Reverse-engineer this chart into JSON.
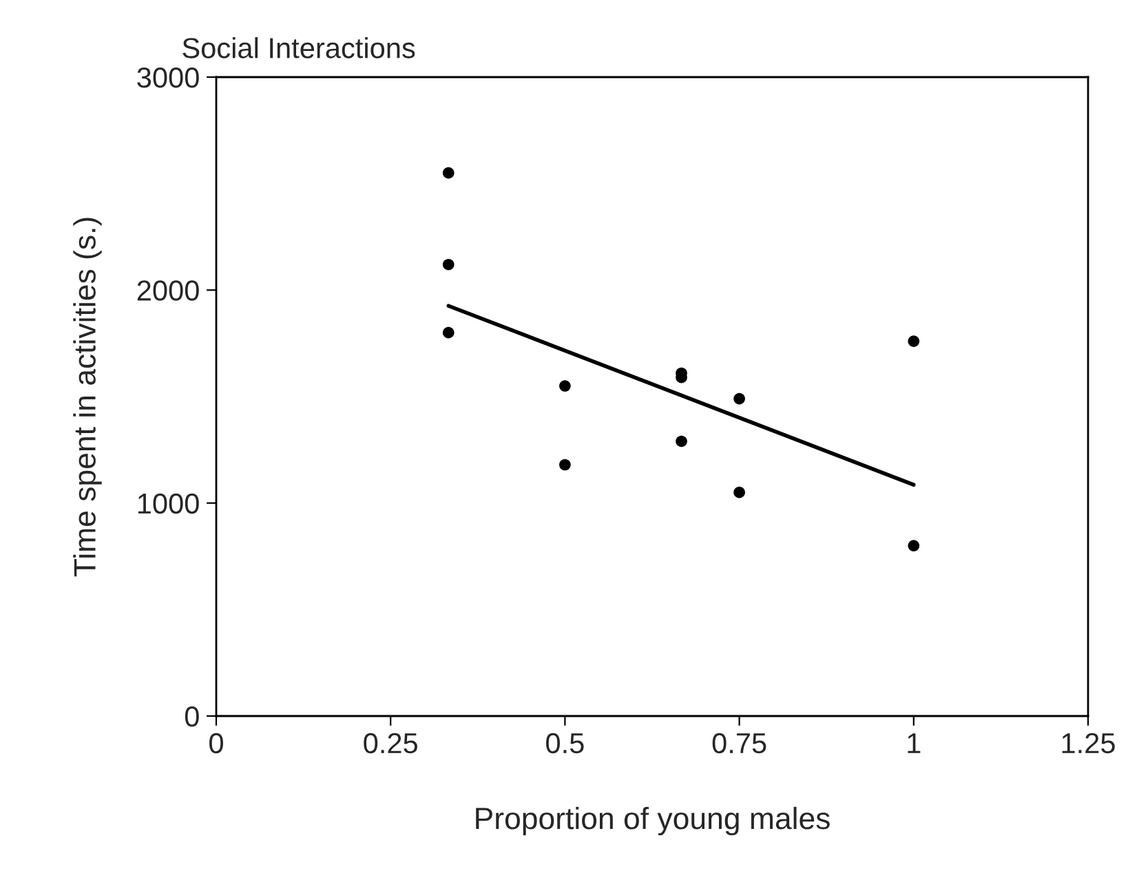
{
  "chart_data": {
    "type": "scatter",
    "title": "Social Interactions",
    "xlabel": "Proportion of young males",
    "ylabel": "Time spent in activities (s.)",
    "xlim": [
      0,
      1.25
    ],
    "xticks": [
      0,
      0.25,
      0.5,
      0.75,
      1,
      1.25
    ],
    "ylim": [
      0,
      3000
    ],
    "yticks": [
      0,
      1000,
      2000,
      3000
    ],
    "grid": false,
    "legend": false,
    "series": [
      {
        "marker": "circle",
        "color": "#000000",
        "x": [
          0.333,
          0.333,
          0.333,
          0.5,
          0.5,
          0.667,
          0.667,
          0.667,
          0.75,
          0.75,
          1,
          1
        ],
        "values": [
          2550,
          2120,
          1800,
          1550,
          1180,
          1610,
          1590,
          1290,
          1490,
          1050,
          1760,
          800
        ]
      },
      {
        "type": "line",
        "marker": "none",
        "color": "#000000",
        "x": [
          0.333,
          1
        ],
        "values": [
          1926,
          1086
        ]
      }
    ]
  }
}
